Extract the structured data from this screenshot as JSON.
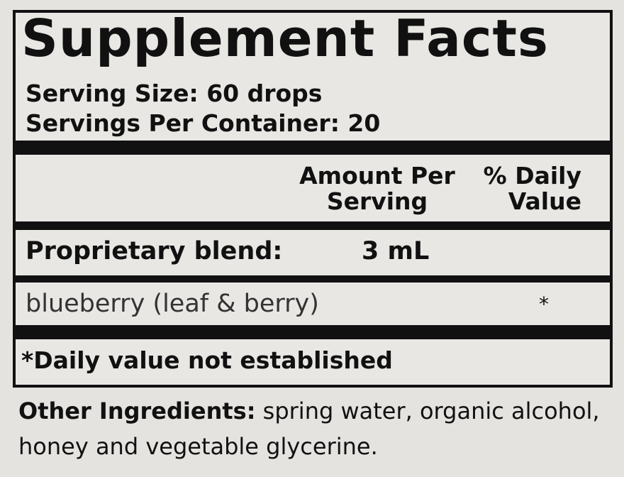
{
  "title": "Supplement Facts",
  "serving_size": "Serving Size: 60 drops",
  "servings_per_container": "Servings Per Container: 20",
  "header": {
    "amount_line1": "Amount Per",
    "amount_line2": "Serving",
    "dv_line1": "% Daily",
    "dv_line2": "Value"
  },
  "rows": [
    {
      "name": "Proprietary blend:",
      "amount": "3 mL",
      "dv": ""
    },
    {
      "name": "blueberry (leaf & berry)",
      "amount": "",
      "dv": "*"
    }
  ],
  "footnote": "*Daily value not established",
  "other_ingredients": {
    "label": "Other Ingredients:",
    "text": "spring water, organic alcohol, honey and vegetable glycerine."
  }
}
